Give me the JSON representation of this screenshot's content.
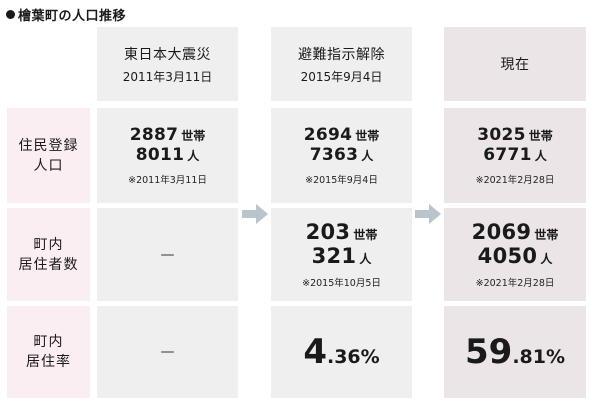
{
  "title": "檜葉町の人口推移",
  "columns": [
    {
      "main": "東日本大震災",
      "date": "2011年3月11日"
    },
    {
      "main": "避難指示解除",
      "date": "2015年9月4日"
    },
    {
      "main": "現在",
      "date": ""
    }
  ],
  "rows": [
    {
      "label_line1": "住民登録",
      "label_line2": "人口"
    },
    {
      "label_line1": "町内",
      "label_line2": "居住者数"
    },
    {
      "label_line1": "町内",
      "label_line2": "居住率"
    }
  ],
  "units": {
    "households": "世帯",
    "people": "人"
  },
  "registered": [
    {
      "households": "2887",
      "people": "8011",
      "note": "※2011年3月11日"
    },
    {
      "households": "2694",
      "people": "7363",
      "note": "※2015年9月4日"
    },
    {
      "households": "3025",
      "people": "6771",
      "note": "※2021年2月28日"
    }
  ],
  "residents": {
    "col1": "—",
    "col2": {
      "households": "203",
      "people": "321",
      "note": "※2015年10月5日"
    },
    "col3": {
      "households": "2069",
      "people": "4050",
      "note": "※2021年2月28日"
    }
  },
  "rate": {
    "col1": "—",
    "col2": {
      "int": "4",
      "dec": ".36%"
    },
    "col3": {
      "int": "59",
      "dec": ".81%"
    }
  },
  "colors": {
    "grey": "#efefef",
    "pink": "#fbeef3",
    "mauve": "#ebe5e7",
    "arrow": "#b9c4cc"
  },
  "icons": {
    "arrow": "arrow-right-icon",
    "bullet": "bullet-icon"
  }
}
